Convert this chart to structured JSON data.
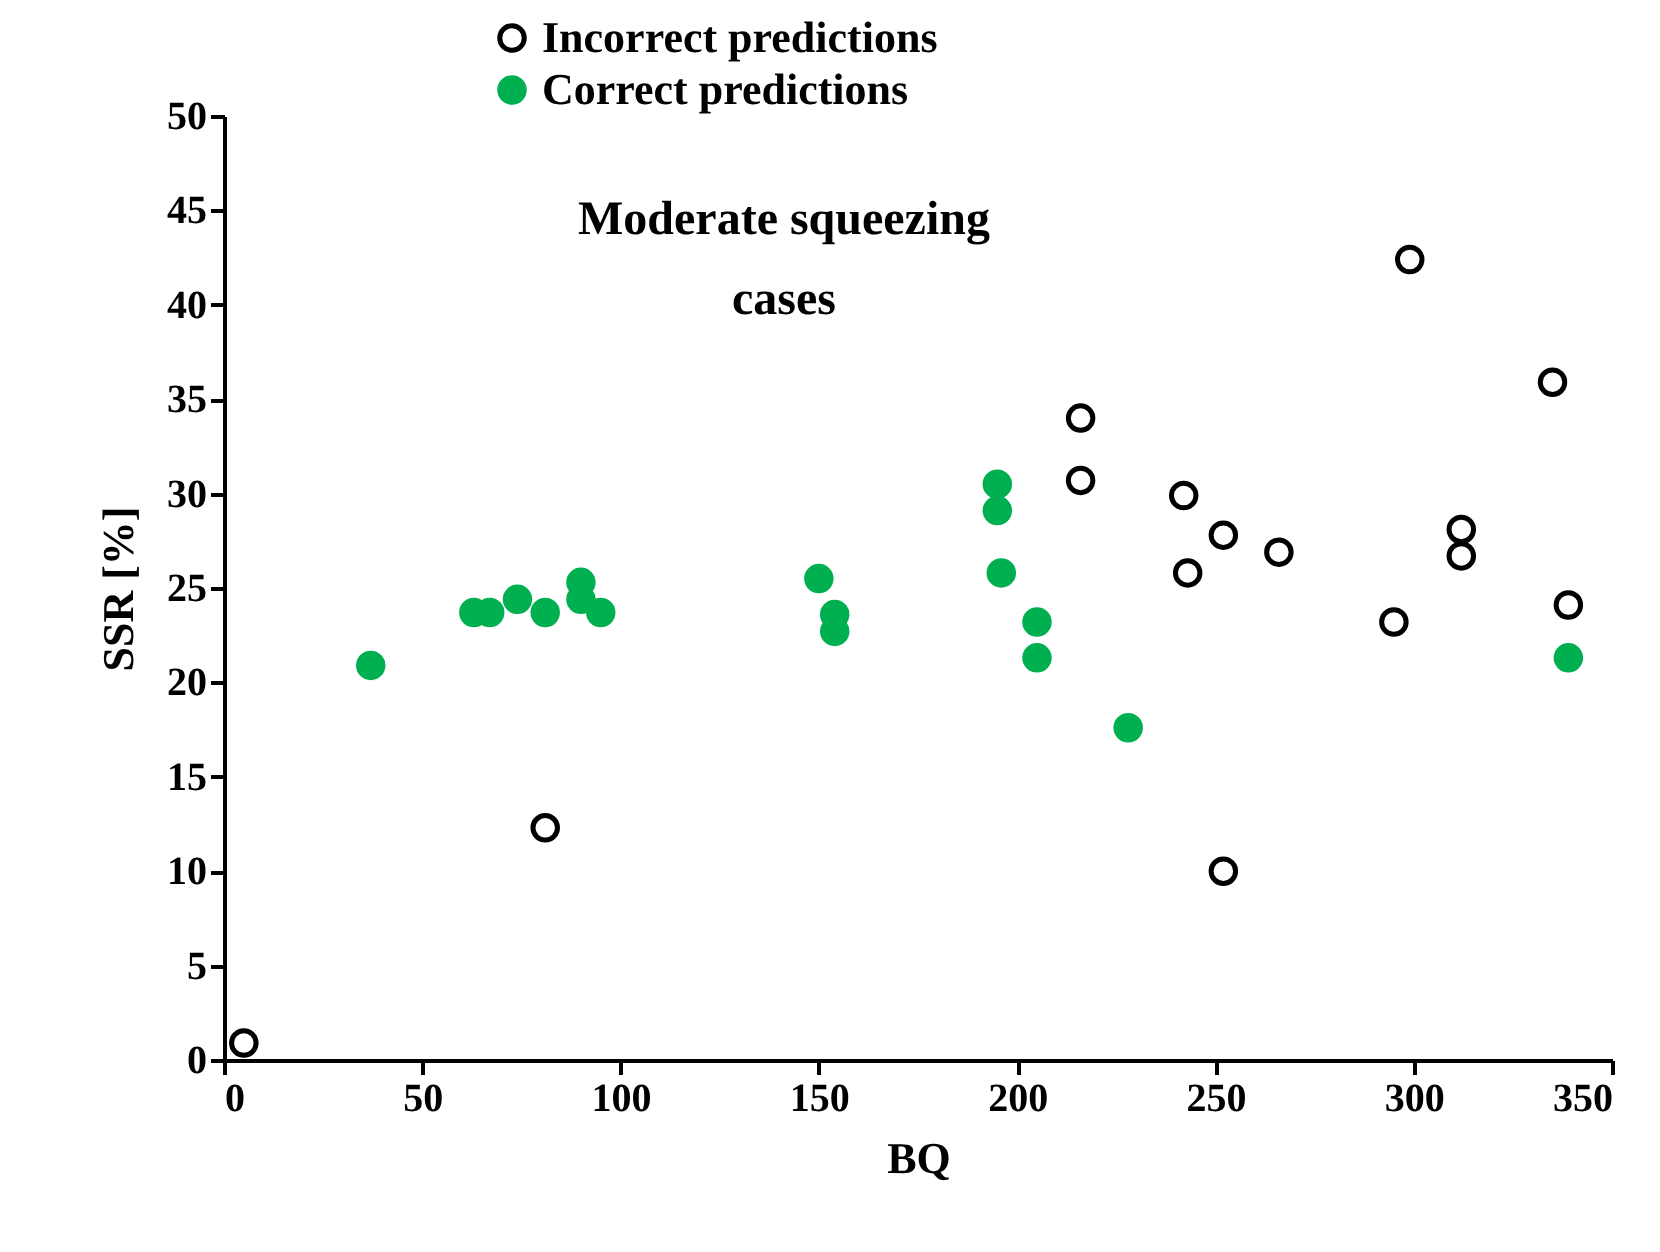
{
  "chart_data": {
    "type": "scatter",
    "xlabel": "BQ",
    "ylabel": "SSR [%]",
    "xlim": [
      0,
      350
    ],
    "xticks": [
      0,
      50,
      100,
      150,
      200,
      250,
      300,
      350
    ],
    "ylim": [
      0,
      50
    ],
    "yticks": [
      0,
      5,
      10,
      15,
      20,
      25,
      30,
      35,
      40,
      45,
      50
    ],
    "grid": false,
    "legend": "top left",
    "marker": "circle",
    "annotations": [
      "Moderate squeezing cases"
    ],
    "series": [
      {
        "name": "Incorrect predictions",
        "color": "#000000",
        "x": [
          5,
          81,
          216,
          216,
          242,
          243,
          252,
          266,
          252,
          299,
          335,
          312,
          312,
          339,
          295
        ],
        "values": [
          0.9,
          12.3,
          34.0,
          30.7,
          29.9,
          25.8,
          27.8,
          26.9,
          10.0,
          42.4,
          35.9,
          28.1,
          26.7,
          24.1,
          23.2
        ]
      },
      {
        "name": "Correct predictions",
        "color": "#00b050",
        "x": [
          37,
          63,
          67,
          74,
          81,
          90,
          90,
          95,
          150,
          154,
          154,
          195,
          195,
          196,
          205,
          205,
          228,
          339
        ],
        "values": [
          20.9,
          23.7,
          23.7,
          24.4,
          23.7,
          25.3,
          24.4,
          23.7,
          25.5,
          23.6,
          22.7,
          30.5,
          29.1,
          25.8,
          23.2,
          21.3,
          17.6,
          21.3
        ]
      }
    ]
  }
}
